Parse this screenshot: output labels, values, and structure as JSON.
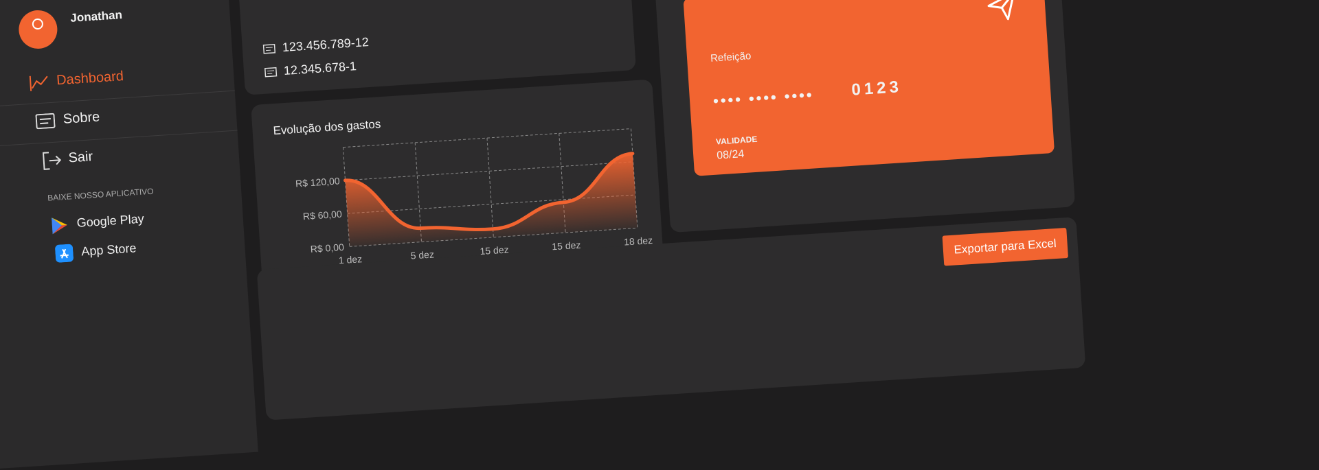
{
  "user": {
    "name": "Jonathan"
  },
  "documents": [
    "123.456.789-12",
    "12.345.678-1"
  ],
  "menu": [
    "Dashboard",
    "Sobre",
    "Sair"
  ],
  "app_section": {
    "title": "BAIXE NOSSO APLICATIVO",
    "stores": [
      "Google Play",
      "App Store"
    ]
  },
  "card": {
    "type": "Refeição",
    "masked": "•••• •••• ••••",
    "last_digits": "0123",
    "validity_label": "VALIDADE",
    "validity": "08/24"
  },
  "export_button": "Exportar para Excel",
  "chart_data": {
    "type": "line",
    "title": "Evolução dos gastos",
    "categories": [
      "1 dez",
      "5 dez",
      "15 dez",
      "15 dez",
      "18 dez"
    ],
    "series": [
      {
        "name": "Gastos",
        "color": "#f26430",
        "values": [
          120,
          25,
          15,
          55,
          135
        ]
      }
    ],
    "ylim": [
      0,
      180
    ],
    "yticks": [
      {
        "value": 0,
        "label": "R$ 0,00"
      },
      {
        "value": 60,
        "label": "R$ 60,00"
      },
      {
        "value": 120,
        "label": "R$ 120,00"
      }
    ],
    "grid": true
  }
}
